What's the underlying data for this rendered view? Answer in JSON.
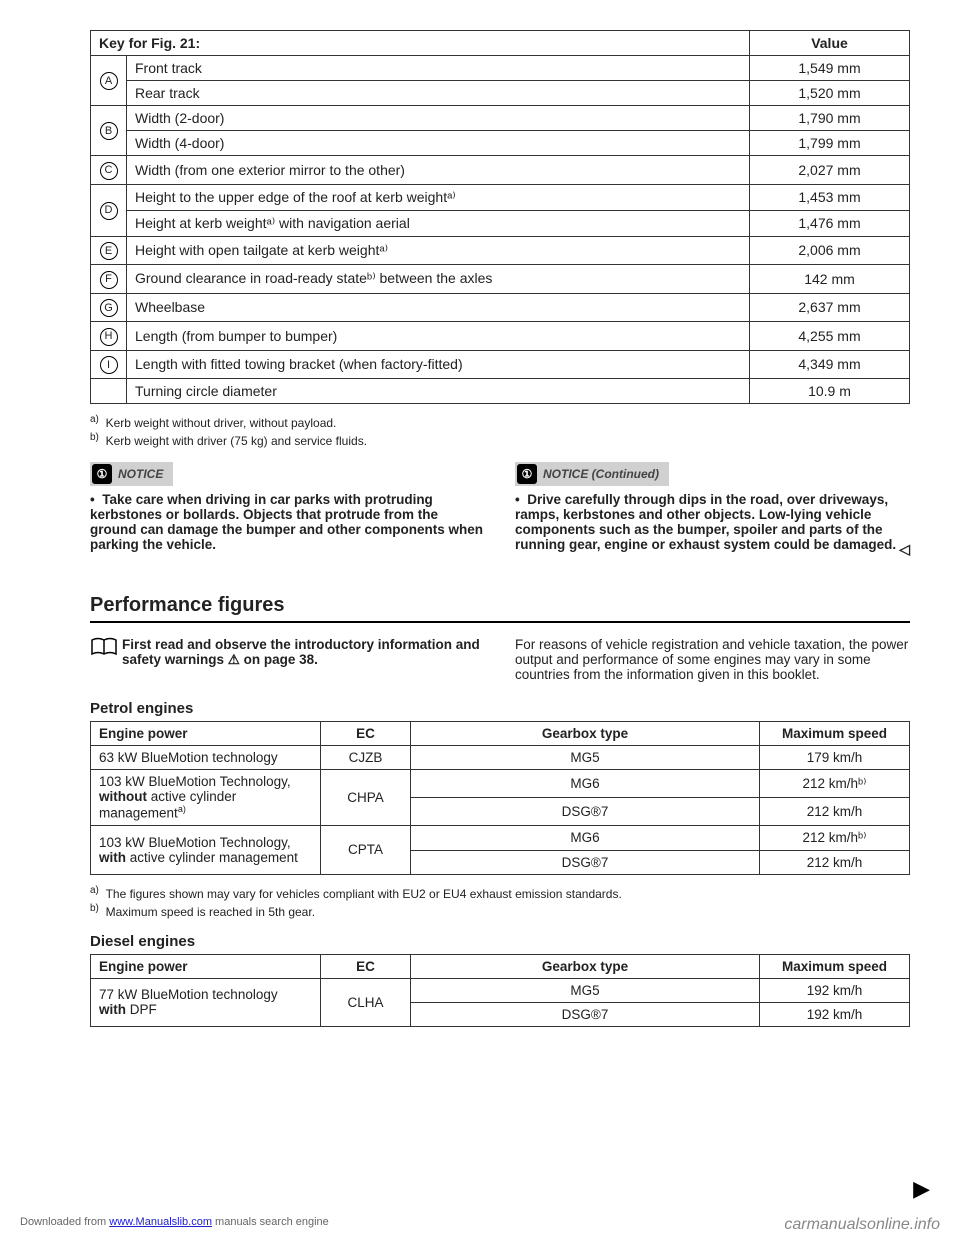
{
  "dims_table": {
    "header_key": "Key for Fig. 21:",
    "header_value": "Value",
    "rows": [
      {
        "marker": "A",
        "span": 2,
        "desc": "Front track",
        "value": "1,549 mm"
      },
      {
        "marker": "",
        "span": 0,
        "desc": "Rear track",
        "value": "1,520 mm"
      },
      {
        "marker": "B",
        "span": 2,
        "desc": "Width (2-door)",
        "value": "1,790 mm"
      },
      {
        "marker": "",
        "span": 0,
        "desc": "Width (4-door)",
        "value": "1,799 mm"
      },
      {
        "marker": "C",
        "span": 1,
        "desc": "Width (from one exterior mirror to the other)",
        "value": "2,027 mm"
      },
      {
        "marker": "D",
        "span": 2,
        "desc": "Height to the upper edge of the roof at kerb weightᵃ⁾",
        "value": "1,453 mm"
      },
      {
        "marker": "",
        "span": 0,
        "desc": "Height at kerb weightᵃ⁾ with navigation aerial",
        "value": "1,476 mm"
      },
      {
        "marker": "E",
        "span": 1,
        "desc": "Height with open tailgate at kerb weightᵃ⁾",
        "value": "2,006 mm"
      },
      {
        "marker": "F",
        "span": 1,
        "desc": "Ground clearance in road-ready stateᵇ⁾ between the axles",
        "value": "142 mm"
      },
      {
        "marker": "G",
        "span": 1,
        "desc": "Wheelbase",
        "value": "2,637 mm"
      },
      {
        "marker": "H",
        "span": 1,
        "desc": "Length (from bumper to bumper)",
        "value": "4,255 mm"
      },
      {
        "marker": "I",
        "span": 1,
        "desc": "Length with fitted towing bracket (when factory-fitted)",
        "value": "4,349 mm"
      },
      {
        "marker": "",
        "span": 1,
        "desc": "Turning circle diameter",
        "value": "10.9 m"
      }
    ]
  },
  "footnote_a": "Kerb weight without driver, without payload.",
  "footnote_b": "Kerb weight with driver (75 kg) and service fluids.",
  "notice_label": "NOTICE",
  "notice_continued_label": "NOTICE (Continued)",
  "notice_left": "Take care when driving in car parks with protruding kerbstones or bollards. Objects that protrude from the ground can damage the bumper and other components when parking the vehicle.",
  "notice_right": "Drive carefully through dips in the road, over driveways, ramps, kerbstones and other objects. Low-lying vehicle components such as the bumper, spoiler and parts of the running gear, engine or exhaust system could be damaged.",
  "performance_heading": "Performance figures",
  "intro_left_bold": "First read and observe the introductory information and safety warnings ⚠ on page 38.",
  "intro_right": "For reasons of vehicle registration and vehicle taxation, the power output and performance of some engines may vary in some countries from the information given in this booklet.",
  "petrol_heading": "Petrol engines",
  "petrol_table": {
    "headers": [
      "Engine power",
      "EC",
      "Gearbox type",
      "Maximum speed"
    ],
    "r1": {
      "power": "63 kW BlueMotion technology",
      "ec": "CJZB",
      "gear": "MG5",
      "speed": "179 km/h"
    },
    "r2": {
      "power_line1": "103 kW BlueMotion Technology,",
      "power_line2_pre": "without",
      "power_line2_post": " active cylinder management",
      "ec": "CHPA",
      "gear1": "MG6",
      "speed1": "212 km/hᵇ⁾",
      "gear2": "DSG®7",
      "speed2": "212 km/h"
    },
    "r3": {
      "power_line1": "103 kW BlueMotion Technology,",
      "power_line2_pre": "with",
      "power_line2_post": " active cylinder management",
      "ec": "CPTA",
      "gear1": "MG6",
      "speed1": "212 km/hᵇ⁾",
      "gear2": "DSG®7",
      "speed2": "212 km/h"
    }
  },
  "petrol_foot_a": "The figures shown may vary for vehicles compliant with EU2 or EU4 exhaust emission standards.",
  "petrol_foot_b": "Maximum speed is reached in 5th gear.",
  "diesel_heading": "Diesel engines",
  "diesel_table": {
    "headers": [
      "Engine power",
      "EC",
      "Gearbox type",
      "Maximum speed"
    ],
    "r1": {
      "power_line1": "77 kW BlueMotion technology",
      "power_line2_pre": "with",
      "power_line2_post": " DPF",
      "ec": "CLHA",
      "gear1": "MG5",
      "speed1": "192 km/h",
      "gear2": "DSG®7",
      "speed2": "192 km/h"
    }
  },
  "footer_left_pre": "Downloaded from ",
  "footer_left_link": "www.Manualslib.com",
  "footer_left_post": " manuals search engine",
  "footer_right": "carmanualsonline.info"
}
